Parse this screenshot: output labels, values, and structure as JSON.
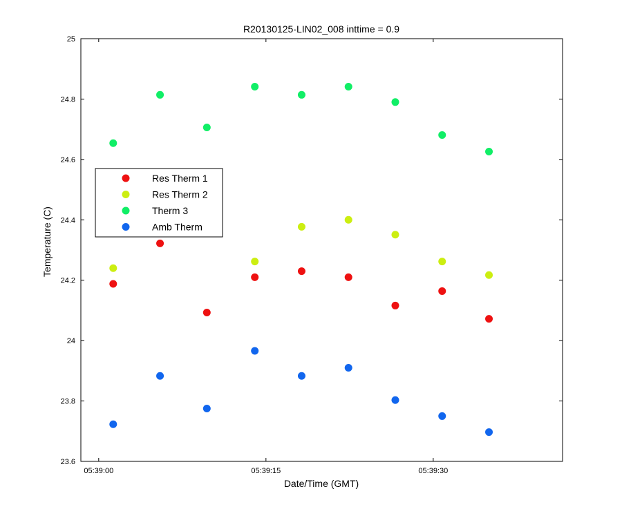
{
  "chart_data": {
    "type": "scatter",
    "title": "R20130125-LIN02_008 inttime = 0.9",
    "xlabel": "Date/Time (GMT)",
    "ylabel": "Temperature (C)",
    "x_unit": "seconds after 05:39:00",
    "xlim": [
      -1.6,
      41.6
    ],
    "ylim": [
      23.6,
      25
    ],
    "x_ticks": [
      {
        "value": 0,
        "label": "05:39:00"
      },
      {
        "value": 15,
        "label": "05:39:15"
      },
      {
        "value": 30,
        "label": "05:39:30"
      }
    ],
    "y_ticks": [
      {
        "value": 23.6,
        "label": "23.6"
      },
      {
        "value": 23.8,
        "label": "23.8"
      },
      {
        "value": 24.0,
        "label": "24"
      },
      {
        "value": 24.2,
        "label": "24.2"
      },
      {
        "value": 24.4,
        "label": "24.4"
      },
      {
        "value": 24.6,
        "label": "24.6"
      },
      {
        "value": 24.8,
        "label": "24.8"
      },
      {
        "value": 25.0,
        "label": "25"
      }
    ],
    "x": [
      1.3,
      5.5,
      9.7,
      14.0,
      18.2,
      22.4,
      26.6,
      30.8,
      35.0
    ],
    "series": [
      {
        "name": "Res Therm 1",
        "color": "#ee1111",
        "values": [
          24.188,
          24.322,
          24.093,
          24.21,
          24.23,
          24.21,
          24.116,
          24.164,
          24.072
        ]
      },
      {
        "name": "Res Therm 2",
        "color": "#ccee11",
        "values": [
          24.24,
          null,
          null,
          24.262,
          24.377,
          24.4,
          24.351,
          24.262,
          24.217
        ]
      },
      {
        "name": "Therm 3",
        "color": "#11ee66",
        "values": [
          24.654,
          24.814,
          24.706,
          24.841,
          24.814,
          24.841,
          24.79,
          24.681,
          24.626
        ]
      },
      {
        "name": "Amb Therm",
        "color": "#1166ee",
        "values": [
          23.723,
          23.883,
          23.775,
          23.966,
          23.883,
          23.91,
          23.803,
          23.75,
          23.697
        ]
      }
    ],
    "grid": false,
    "legend_position": "left"
  }
}
